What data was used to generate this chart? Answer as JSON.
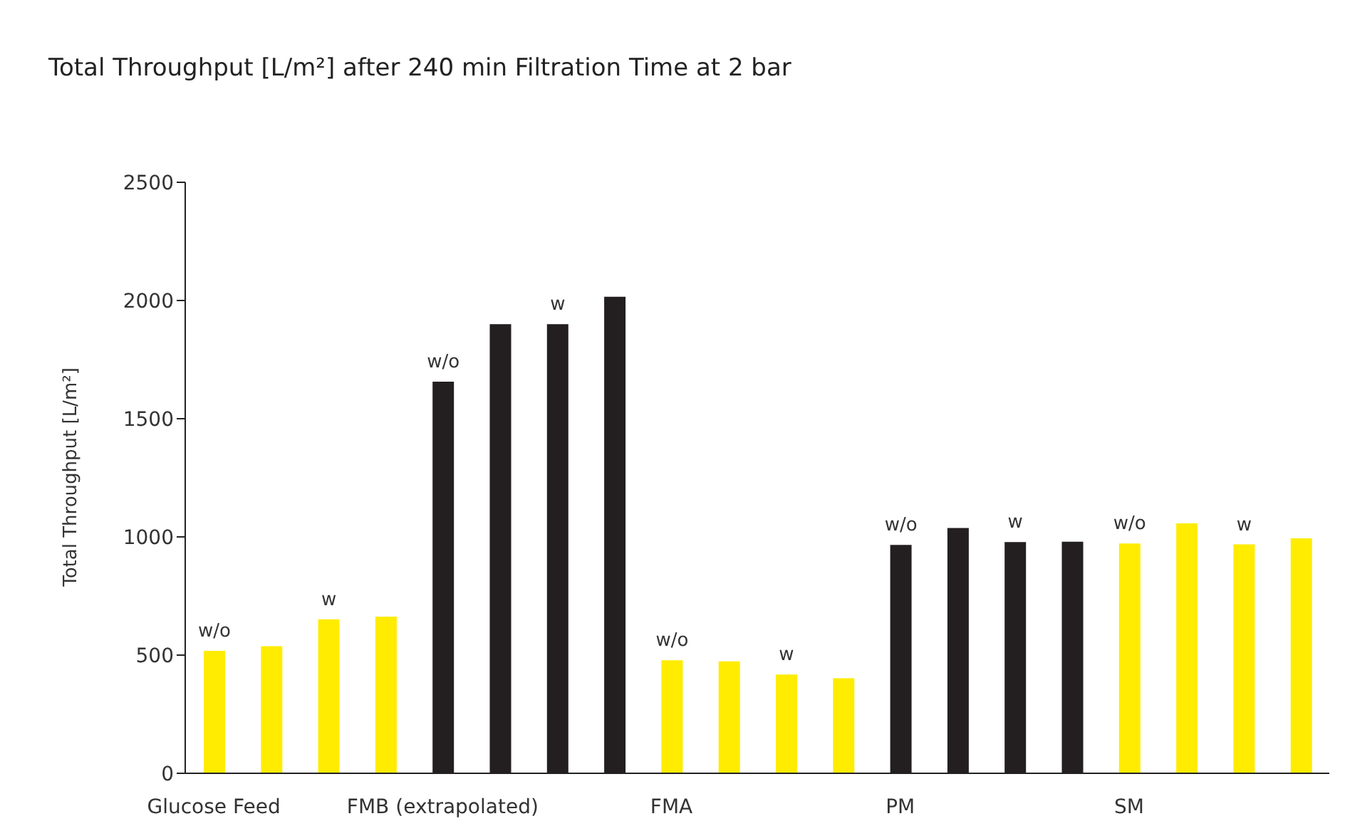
{
  "chart_data": {
    "type": "bar",
    "title": "Total Throughput [L/m²] after 240 min Filtration Time at 2 bar",
    "ylabel": "Total Throughput [L/m²]",
    "categories": [
      "Glucose Feed",
      null,
      null,
      null,
      "FMB (extrapolated)",
      null,
      null,
      null,
      "FMA",
      null,
      null,
      null,
      "PM",
      null,
      null,
      null,
      "SM",
      null,
      null,
      null
    ],
    "values": [
      518,
      538,
      651,
      663,
      1657,
      1900,
      1900,
      2016,
      478,
      474,
      418,
      402,
      966,
      1038,
      978,
      980,
      972,
      1057,
      968,
      994
    ],
    "colors": [
      "#ffec00",
      "#ffec00",
      "#ffec00",
      "#ffec00",
      "#231f20",
      "#231f20",
      "#231f20",
      "#231f20",
      "#ffec00",
      "#ffec00",
      "#ffec00",
      "#ffec00",
      "#231f20",
      "#231f20",
      "#231f20",
      "#231f20",
      "#ffec00",
      "#ffec00",
      "#ffec00",
      "#ffec00"
    ],
    "value_labels": [
      "w/o",
      null,
      "w",
      null,
      "w/o",
      null,
      "w",
      null,
      "w/o",
      null,
      "w",
      null,
      "w/o",
      null,
      "w",
      null,
      "w/o",
      null,
      "w",
      null
    ],
    "ylim": [
      0,
      2500
    ],
    "yticks": [
      0,
      500,
      1000,
      1500,
      2000,
      2500
    ],
    "grid": false,
    "legend": false
  }
}
